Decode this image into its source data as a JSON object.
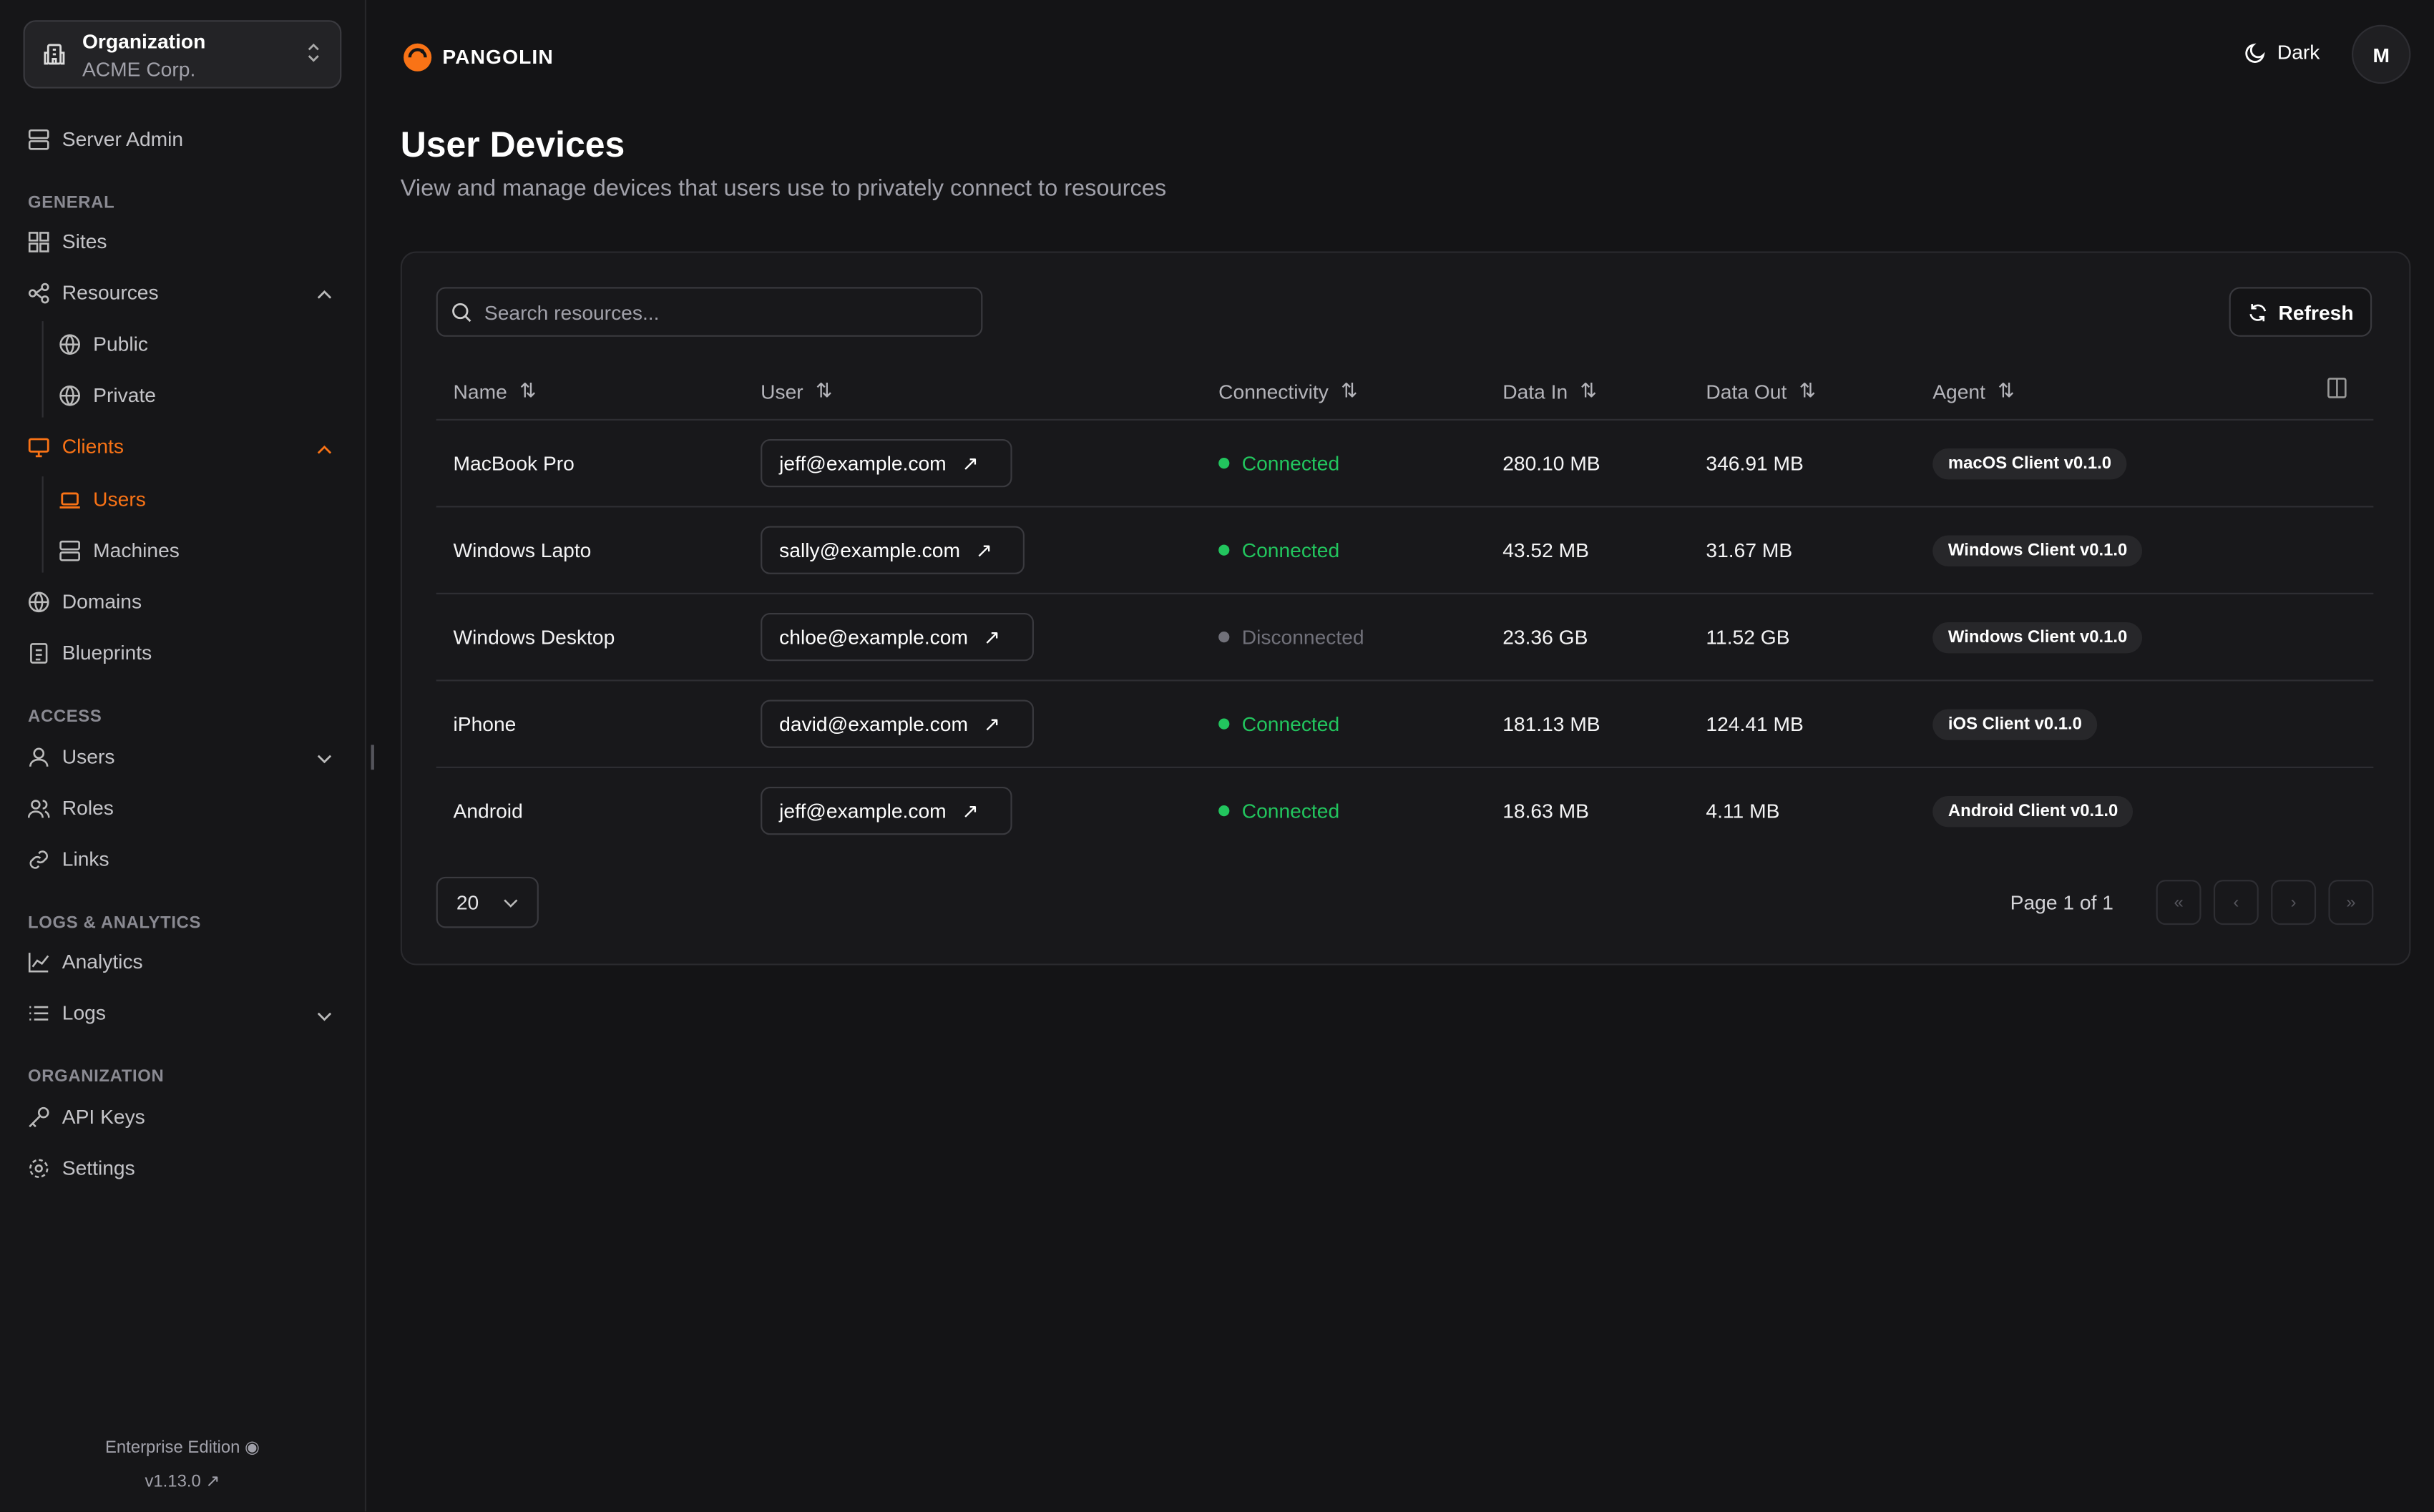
{
  "org": {
    "label": "Organization",
    "name": "ACME Corp."
  },
  "sidebar": {
    "server_admin": "Server Admin",
    "sections": {
      "general": "GENERAL",
      "access": "ACCESS",
      "logs": "LOGS & ANALYTICS",
      "organization": "ORGANIZATION"
    },
    "items": {
      "sites": "Sites",
      "resources": "Resources",
      "public": "Public",
      "private": "Private",
      "clients": "Clients",
      "users": "Users",
      "machines": "Machines",
      "domains": "Domains",
      "blueprints": "Blueprints",
      "access_users": "Users",
      "roles": "Roles",
      "links": "Links",
      "analytics": "Analytics",
      "logs": "Logs",
      "api_keys": "API Keys",
      "settings": "Settings"
    },
    "edition": "Enterprise Edition",
    "version": "v1.13.0"
  },
  "header": {
    "brand": "PANGOLIN",
    "theme": "Dark",
    "avatar": "M",
    "accent": "#f97316"
  },
  "page": {
    "title": "User Devices",
    "subtitle": "View and manage devices that users use to privately connect to resources"
  },
  "toolbar": {
    "search_placeholder": "Search resources...",
    "refresh": "Refresh"
  },
  "table": {
    "columns": [
      "Name",
      "User",
      "Connectivity",
      "Data In",
      "Data Out",
      "Agent"
    ],
    "rows": [
      {
        "name": "MacBook Pro",
        "user": "jeff@example.com",
        "status": "Connected",
        "in": "280.10 MB",
        "out": "346.91 MB",
        "agent": "macOS Client v0.1.0"
      },
      {
        "name": "Windows Lapto",
        "user": "sally@example.com",
        "status": "Connected",
        "in": "43.52 MB",
        "out": "31.67 MB",
        "agent": "Windows Client v0.1.0"
      },
      {
        "name": "Windows Desktop",
        "user": "chloe@example.com",
        "status": "Disconnected",
        "in": "23.36 GB",
        "out": "11.52 GB",
        "agent": "Windows Client v0.1.0"
      },
      {
        "name": "iPhone",
        "user": "david@example.com",
        "status": "Connected",
        "in": "181.13 MB",
        "out": "124.41 MB",
        "agent": "iOS Client v0.1.0"
      },
      {
        "name": "Android",
        "user": "jeff@example.com",
        "status": "Connected",
        "in": "18.63 MB",
        "out": "4.11 MB",
        "agent": "Android Client v0.1.0"
      }
    ]
  },
  "pagination": {
    "page_size": "20",
    "page_info": "Page 1 of 1"
  },
  "colors": {
    "connected": "#22c55e",
    "disconnected": "#71717a"
  }
}
